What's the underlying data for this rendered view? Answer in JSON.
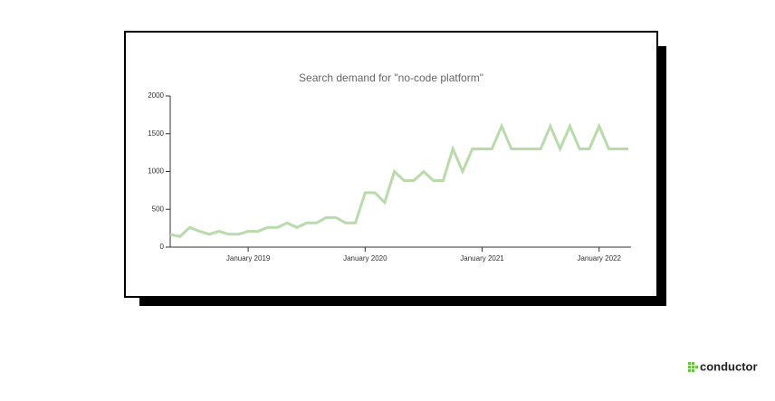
{
  "chart_data": {
    "type": "line",
    "title": "Search demand for \"no-code platform\"",
    "x": [
      "2018-05",
      "2018-06",
      "2018-07",
      "2018-08",
      "2018-09",
      "2018-10",
      "2018-11",
      "2018-12",
      "2019-01",
      "2019-02",
      "2019-03",
      "2019-04",
      "2019-05",
      "2019-06",
      "2019-07",
      "2019-08",
      "2019-09",
      "2019-10",
      "2019-11",
      "2019-12",
      "2020-01",
      "2020-02",
      "2020-03",
      "2020-04",
      "2020-05",
      "2020-06",
      "2020-07",
      "2020-08",
      "2020-09",
      "2020-10",
      "2020-11",
      "2020-12",
      "2021-01",
      "2021-02",
      "2021-03",
      "2021-04",
      "2021-05",
      "2021-06",
      "2021-07",
      "2021-08",
      "2021-09",
      "2021-10",
      "2021-11",
      "2021-12",
      "2022-01",
      "2022-02",
      "2022-03",
      "2022-04"
    ],
    "series": [
      {
        "name": "no-code platform",
        "color": "#b8dba9",
        "values": [
          170,
          140,
          260,
          210,
          170,
          210,
          170,
          170,
          210,
          210,
          260,
          260,
          320,
          260,
          320,
          320,
          390,
          390,
          320,
          320,
          720,
          720,
          590,
          1000,
          880,
          880,
          1000,
          880,
          880,
          1300,
          1000,
          1300,
          1300,
          1300,
          1600,
          1300,
          1300,
          1300,
          1300,
          1600,
          1300,
          1600,
          1300,
          1300,
          1600,
          1300,
          1300,
          1300
        ]
      }
    ],
    "xlim": [
      "2018-05",
      "2022-04"
    ],
    "xticks": [
      {
        "value": "2019-01",
        "label": "January 2019"
      },
      {
        "value": "2020-01",
        "label": "January 2020"
      },
      {
        "value": "2021-01",
        "label": "January 2021"
      },
      {
        "value": "2022-01",
        "label": "January 2022"
      }
    ],
    "ylim": [
      0,
      2000
    ],
    "yticks": [
      0,
      500,
      1000,
      1500,
      2000
    ],
    "grid": false
  },
  "logo": {
    "text": "conductor"
  }
}
